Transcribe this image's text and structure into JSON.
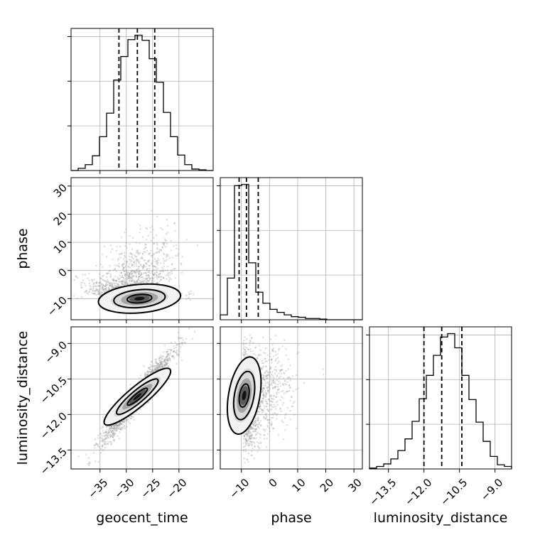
{
  "chart_data": {
    "type": "corner",
    "title": "",
    "colors": {
      "lines": "#000000",
      "grid": "#b0b0b0",
      "points": "#9a9a9a"
    },
    "variables": [
      {
        "name": "geocent_time",
        "label": "geocent_time",
        "range": [
          -40.5,
          -13.5
        ],
        "ticks": [
          -35,
          -30,
          -25,
          -20
        ],
        "tick_labels": [
          "−35",
          "−30",
          "−25",
          "−20"
        ]
      },
      {
        "name": "phase",
        "label": "phase",
        "range": [
          -17.5,
          33
        ],
        "ticks": [
          -10,
          0,
          10,
          20,
          30
        ],
        "tick_labels": [
          "−10",
          "0",
          "10",
          "20",
          "30"
        ]
      },
      {
        "name": "luminosity_distance",
        "label": "luminosity_distance",
        "range": [
          -14.3,
          -8.3
        ],
        "ticks": [
          -13.5,
          -12.0,
          -10.5,
          -9.0
        ],
        "tick_labels": [
          "−13.5",
          "−12.0",
          "−10.5",
          "−9.0"
        ]
      }
    ],
    "marginals": [
      {
        "variable": "geocent_time",
        "bin_edges": [
          -40.5,
          -39.15,
          -37.8,
          -36.45,
          -35.1,
          -33.75,
          -32.4,
          -31.05,
          -29.7,
          -28.35,
          -27.0,
          -25.65,
          -24.3,
          -22.95,
          -21.6,
          -20.25,
          -18.9,
          -17.55,
          -16.2,
          -14.85,
          -13.5
        ],
        "counts": [
          0,
          3,
          8,
          20,
          46,
          78,
          123,
          155,
          178,
          184,
          177,
          152,
          120,
          79,
          46,
          21,
          8,
          2,
          1,
          0
        ],
        "quantiles": [
          -31.4,
          -27.9,
          -24.6
        ]
      },
      {
        "variable": "phase",
        "bin_edges": [
          -17.5,
          -14.975,
          -12.45,
          -9.925,
          -7.4,
          -4.875,
          -2.35,
          0.175,
          2.7,
          5.225,
          7.75,
          10.275,
          12.8,
          15.325,
          17.85,
          20.375,
          22.9,
          25.425,
          27.95,
          30.475,
          33.0
        ],
        "counts": [
          8,
          68,
          219,
          221,
          93,
          45,
          27,
          17,
          12,
          8,
          5,
          4,
          2,
          2,
          1,
          0,
          0,
          0,
          0,
          0
        ],
        "quantiles": [
          -10.8,
          -8.2,
          -4.0
        ]
      },
      {
        "variable": "luminosity_distance",
        "bin_edges": [
          -14.3,
          -14.0,
          -13.7,
          -13.4,
          -13.1,
          -12.8,
          -12.5,
          -12.2,
          -11.9,
          -11.6,
          -11.3,
          -11.0,
          -10.7,
          -10.4,
          -10.1,
          -9.8,
          -9.5,
          -9.2,
          -8.9,
          -8.6,
          -8.3
        ],
        "counts": [
          1,
          3,
          6,
          12,
          22,
          36,
          57,
          84,
          112,
          136,
          158,
          162,
          145,
          112,
          83,
          56,
          33,
          15,
          5,
          3
        ],
        "quantiles": [
          -12.0,
          -11.25,
          -10.4
        ]
      }
    ],
    "pairs": [
      {
        "x": "geocent_time",
        "y": "phase",
        "mean": [
          -28.5,
          -4.0
        ],
        "sd": [
          3.8,
          7.5
        ],
        "correlation": 0.35
      },
      {
        "x": "geocent_time",
        "y": "luminosity_distance",
        "mean": [
          -27.9,
          -11.25
        ],
        "sd": [
          3.3,
          0.95
        ],
        "correlation": 0.96
      },
      {
        "x": "phase",
        "y": "luminosity_distance",
        "mean": [
          -6.0,
          -11.25
        ],
        "sd": [
          5.0,
          0.95
        ],
        "correlation": 0.25
      }
    ]
  }
}
